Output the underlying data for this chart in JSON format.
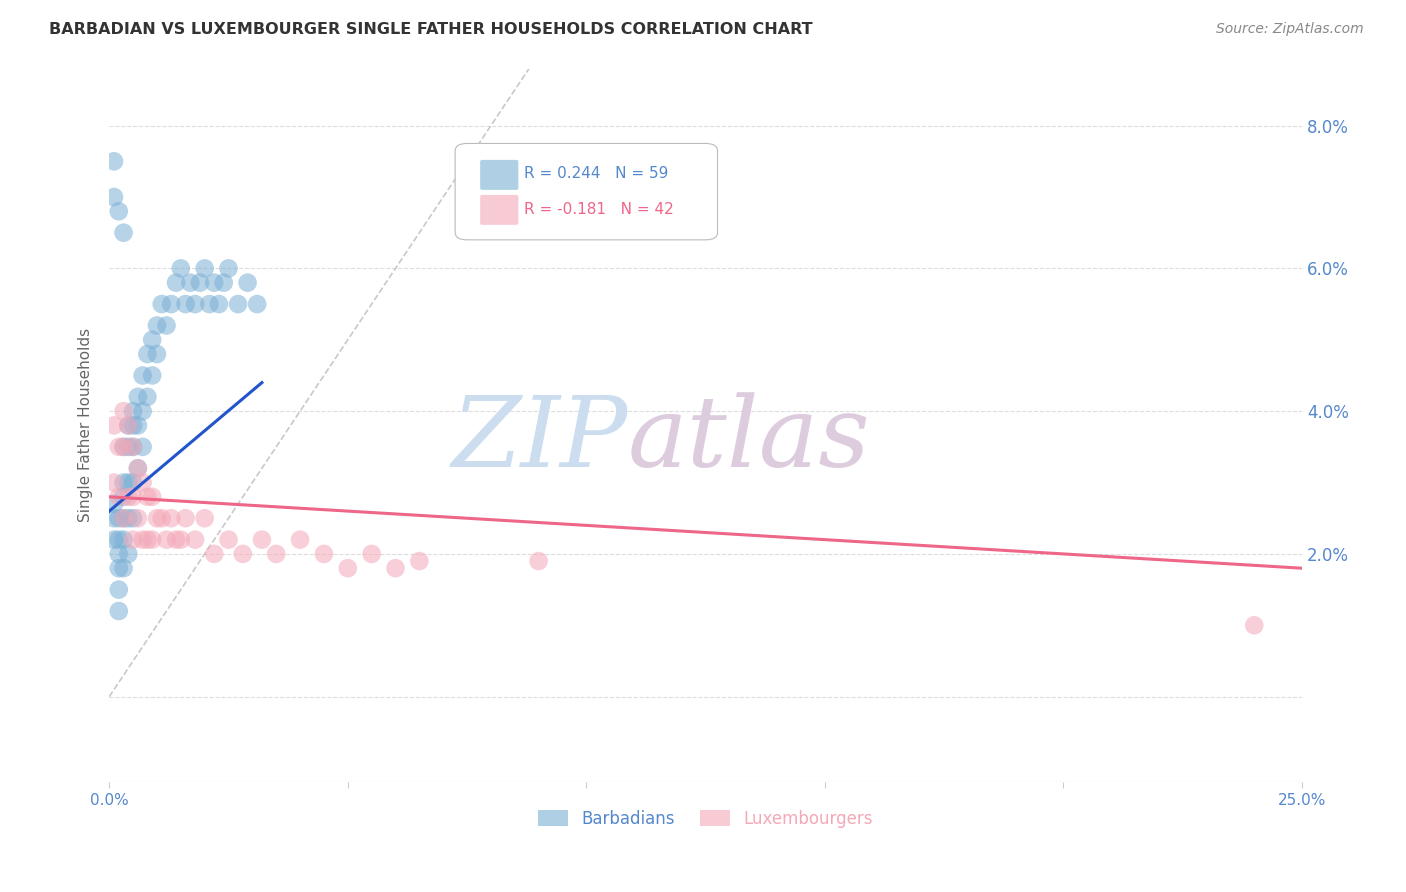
{
  "title": "BARBADIAN VS LUXEMBOURGER SINGLE FATHER HOUSEHOLDS CORRELATION CHART",
  "source": "Source: ZipAtlas.com",
  "ylabel": "Single Father Households",
  "blue_color": "#7BAFD4",
  "pink_color": "#F4A8B8",
  "trend_blue": "#2255CC",
  "trend_pink": "#EE6688",
  "diagonal_color": "#BBBBBB",
  "watermark_zip_color": "#DDEEFF",
  "watermark_atlas_color": "#DDCCDD",
  "axis_color": "#5588CC",
  "grid_color": "#DDDDDD",
  "title_color": "#333333",
  "source_color": "#888888",
  "xlim": [
    0.0,
    0.25
  ],
  "ylim": [
    -0.012,
    0.088
  ],
  "ytick_values": [
    0.0,
    0.02,
    0.04,
    0.06,
    0.08
  ],
  "barbadians_x": [
    0.001,
    0.001,
    0.001,
    0.002,
    0.002,
    0.002,
    0.002,
    0.002,
    0.002,
    0.003,
    0.003,
    0.003,
    0.003,
    0.003,
    0.003,
    0.004,
    0.004,
    0.004,
    0.004,
    0.004,
    0.005,
    0.005,
    0.005,
    0.005,
    0.005,
    0.006,
    0.006,
    0.006,
    0.007,
    0.007,
    0.007,
    0.008,
    0.008,
    0.009,
    0.009,
    0.01,
    0.01,
    0.011,
    0.012,
    0.013,
    0.014,
    0.015,
    0.016,
    0.017,
    0.018,
    0.019,
    0.02,
    0.021,
    0.022,
    0.023,
    0.024,
    0.025,
    0.027,
    0.029,
    0.031,
    0.001,
    0.001,
    0.002,
    0.003
  ],
  "barbadians_y": [
    0.027,
    0.025,
    0.022,
    0.025,
    0.022,
    0.02,
    0.018,
    0.015,
    0.012,
    0.035,
    0.03,
    0.028,
    0.025,
    0.022,
    0.018,
    0.038,
    0.035,
    0.03,
    0.025,
    0.02,
    0.04,
    0.038,
    0.035,
    0.03,
    0.025,
    0.042,
    0.038,
    0.032,
    0.045,
    0.04,
    0.035,
    0.048,
    0.042,
    0.05,
    0.045,
    0.052,
    0.048,
    0.055,
    0.052,
    0.055,
    0.058,
    0.06,
    0.055,
    0.058,
    0.055,
    0.058,
    0.06,
    0.055,
    0.058,
    0.055,
    0.058,
    0.06,
    0.055,
    0.058,
    0.055,
    0.07,
    0.075,
    0.068,
    0.065
  ],
  "luxembourgers_x": [
    0.001,
    0.001,
    0.002,
    0.002,
    0.003,
    0.003,
    0.003,
    0.004,
    0.004,
    0.005,
    0.005,
    0.005,
    0.006,
    0.006,
    0.007,
    0.007,
    0.008,
    0.008,
    0.009,
    0.009,
    0.01,
    0.011,
    0.012,
    0.013,
    0.014,
    0.015,
    0.016,
    0.018,
    0.02,
    0.022,
    0.025,
    0.028,
    0.032,
    0.035,
    0.04,
    0.045,
    0.05,
    0.055,
    0.06,
    0.065,
    0.09,
    0.24
  ],
  "luxembourgers_y": [
    0.038,
    0.03,
    0.035,
    0.028,
    0.04,
    0.035,
    0.025,
    0.038,
    0.028,
    0.035,
    0.028,
    0.022,
    0.032,
    0.025,
    0.03,
    0.022,
    0.028,
    0.022,
    0.028,
    0.022,
    0.025,
    0.025,
    0.022,
    0.025,
    0.022,
    0.022,
    0.025,
    0.022,
    0.025,
    0.02,
    0.022,
    0.02,
    0.022,
    0.02,
    0.022,
    0.02,
    0.018,
    0.02,
    0.018,
    0.019,
    0.019,
    0.01
  ],
  "blue_trend_x": [
    0.0,
    0.032
  ],
  "blue_trend_y": [
    0.026,
    0.044
  ],
  "pink_trend_x": [
    0.0,
    0.25
  ],
  "pink_trend_y": [
    0.028,
    0.018
  ]
}
